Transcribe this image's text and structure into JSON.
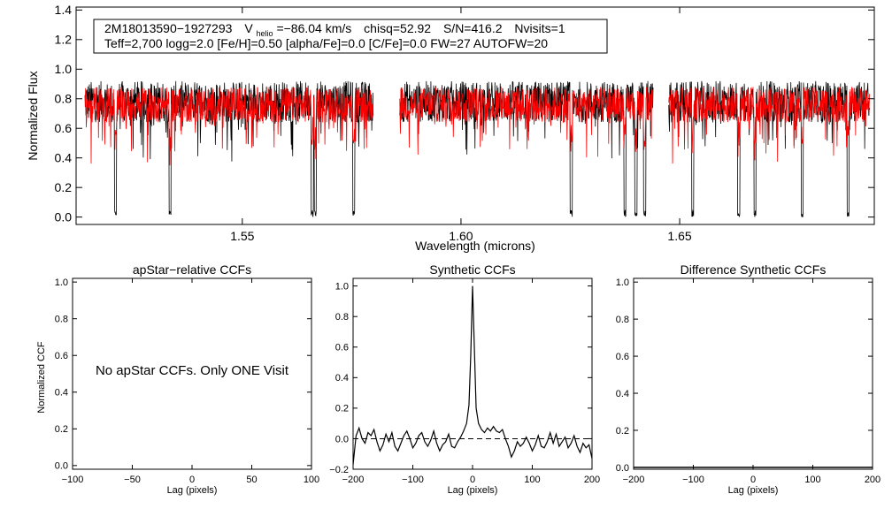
{
  "colors": {
    "observed": "#000000",
    "model": "#ff0000",
    "axis": "#000000",
    "reference": "#000000"
  },
  "spectrum": {
    "header_line1": {
      "star_id": "2M18013590−1927293",
      "v_prefix": "V",
      "v_sub": "helio",
      "v_value": "=−86.04 km/s",
      "chisq": "chisq=52.92",
      "sn": "S/N=416.2",
      "nvisits": "Nvisits=1"
    },
    "header_line2": "Teff=2,700 logg=2.0 [Fe/H]=0.50 [alpha/Fe]=0.0 [C/Fe]=0.0 FW=27 AUTOFW=20"
  },
  "ccf_panels": {
    "apstar": {
      "title": "apStar−relative CCFs",
      "message": "No apStar CCFs.  Only ONE Visit"
    },
    "synthetic": {
      "title": "Synthetic CCFs"
    },
    "difference": {
      "title": "Difference Synthetic CCFs"
    }
  },
  "chart_data": [
    {
      "type": "line",
      "xlabel": "Wavelength (microns)",
      "ylabel": "Normalized Flux",
      "xlim": [
        1.512,
        1.6945
      ],
      "ylim": [
        -0.05,
        1.42
      ],
      "xticks": [
        1.55,
        1.6,
        1.65
      ],
      "xtick_labels": [
        "1.55",
        "1.60",
        "1.65"
      ],
      "yticks": [
        0.0,
        0.2,
        0.4,
        0.6,
        0.8,
        1.0,
        1.2,
        1.4
      ],
      "ytick_labels": [
        "0.0",
        "0.2",
        "0.4",
        "0.6",
        "0.8",
        "1.0",
        "1.2",
        "1.4"
      ],
      "chip_ranges": [
        [
          1.514,
          1.58
        ],
        [
          1.586,
          1.644
        ],
        [
          1.6475,
          1.6935
        ]
      ],
      "deep_lines": [
        1.521,
        1.5335,
        1.566,
        1.5667,
        1.5755,
        1.6252,
        1.6375,
        1.64,
        1.642,
        1.653,
        1.6635,
        1.6672,
        1.678,
        1.6885
      ],
      "series": [
        {
          "color": "#000000",
          "mean": 0.78,
          "scatter": 0.14
        },
        {
          "color": "#ff0000",
          "mean": 0.76,
          "scatter": 0.12
        }
      ]
    },
    {
      "type": "line",
      "xlabel": "Lag (pixels)",
      "ylabel": "Normalized CCF",
      "xlim": [
        -100,
        100
      ],
      "ylim": [
        -0.02,
        1.02
      ],
      "xticks": [
        -100,
        -50,
        0,
        50,
        100
      ],
      "xtick_labels": [
        "−100",
        "−50",
        "0",
        "50",
        "100"
      ],
      "yticks": [
        0.0,
        0.2,
        0.4,
        0.6,
        0.8,
        1.0
      ],
      "ytick_labels": [
        "0.0",
        "0.2",
        "0.4",
        "0.6",
        "0.8",
        "1.0"
      ],
      "series": []
    },
    {
      "type": "line",
      "xlabel": "Lag (pixels)",
      "xlim": [
        -200,
        200
      ],
      "ylim": [
        -0.2,
        1.05
      ],
      "xticks": [
        -200,
        -100,
        0,
        100,
        200
      ],
      "xtick_labels": [
        "−200",
        "−100",
        "0",
        "100",
        "200"
      ],
      "yticks": [
        -0.2,
        0.0,
        0.2,
        0.4,
        0.6,
        0.8,
        1.0
      ],
      "ytick_labels": [
        "−0.2",
        "0.0",
        "0.2",
        "0.4",
        "0.6",
        "0.8",
        "1.0"
      ],
      "reference_line": 0.0,
      "series": [
        {
          "color": "#000000",
          "x": [
            -200,
            -195,
            -190,
            -185,
            -180,
            -175,
            -170,
            -165,
            -160,
            -155,
            -150,
            -145,
            -140,
            -135,
            -130,
            -125,
            -120,
            -115,
            -110,
            -105,
            -100,
            -95,
            -90,
            -85,
            -80,
            -75,
            -70,
            -65,
            -60,
            -55,
            -50,
            -45,
            -40,
            -35,
            -30,
            -25,
            -20,
            -15,
            -10,
            -6,
            -3,
            0,
            3,
            6,
            10,
            15,
            20,
            25,
            30,
            35,
            40,
            45,
            50,
            55,
            60,
            65,
            70,
            75,
            80,
            85,
            90,
            95,
            100,
            105,
            110,
            115,
            120,
            125,
            130,
            135,
            140,
            145,
            150,
            155,
            160,
            165,
            170,
            175,
            180,
            185,
            190,
            195,
            200
          ],
          "y": [
            -0.17,
            0.02,
            0.07,
            0.0,
            -0.03,
            0.04,
            0.02,
            0.06,
            -0.02,
            -0.08,
            -0.04,
            0.03,
            -0.02,
            0.04,
            -0.05,
            -0.08,
            -0.03,
            0.02,
            0.05,
            0.0,
            -0.06,
            -0.03,
            0.02,
            0.04,
            -0.02,
            -0.05,
            -0.01,
            0.05,
            -0.03,
            -0.08,
            -0.04,
            -0.02,
            0.03,
            -0.05,
            -0.06,
            -0.02,
            0.01,
            0.05,
            0.1,
            0.22,
            0.55,
            1.0,
            0.6,
            0.2,
            0.1,
            0.06,
            0.04,
            0.07,
            0.05,
            0.08,
            0.05,
            0.04,
            0.06,
            0.0,
            -0.05,
            -0.12,
            -0.08,
            -0.02,
            -0.05,
            -0.03,
            0.01,
            -0.03,
            -0.08,
            -0.04,
            0.02,
            -0.05,
            -0.06,
            -0.02,
            0.04,
            -0.03,
            0.03,
            -0.05,
            -0.02,
            0.01,
            -0.06,
            -0.03,
            0.02,
            -0.05,
            -0.09,
            -0.03,
            -0.06,
            -0.04,
            -0.13
          ]
        }
      ]
    },
    {
      "type": "line",
      "xlabel": "Lag (pixels)",
      "xlim": [
        -200,
        200
      ],
      "ylim": [
        -0.01,
        1.02
      ],
      "xticks": [
        -200,
        -100,
        0,
        100,
        200
      ],
      "xtick_labels": [
        "−200",
        "−100",
        "0",
        "100",
        "200"
      ],
      "yticks": [
        0.0,
        0.2,
        0.4,
        0.6,
        0.8,
        1.0
      ],
      "ytick_labels": [
        "0.0",
        "0.2",
        "0.4",
        "0.6",
        "0.8",
        "1.0"
      ],
      "series": [
        {
          "color": "#000000",
          "x": [
            -200,
            200
          ],
          "y": [
            0.0,
            0.0
          ]
        }
      ]
    }
  ]
}
